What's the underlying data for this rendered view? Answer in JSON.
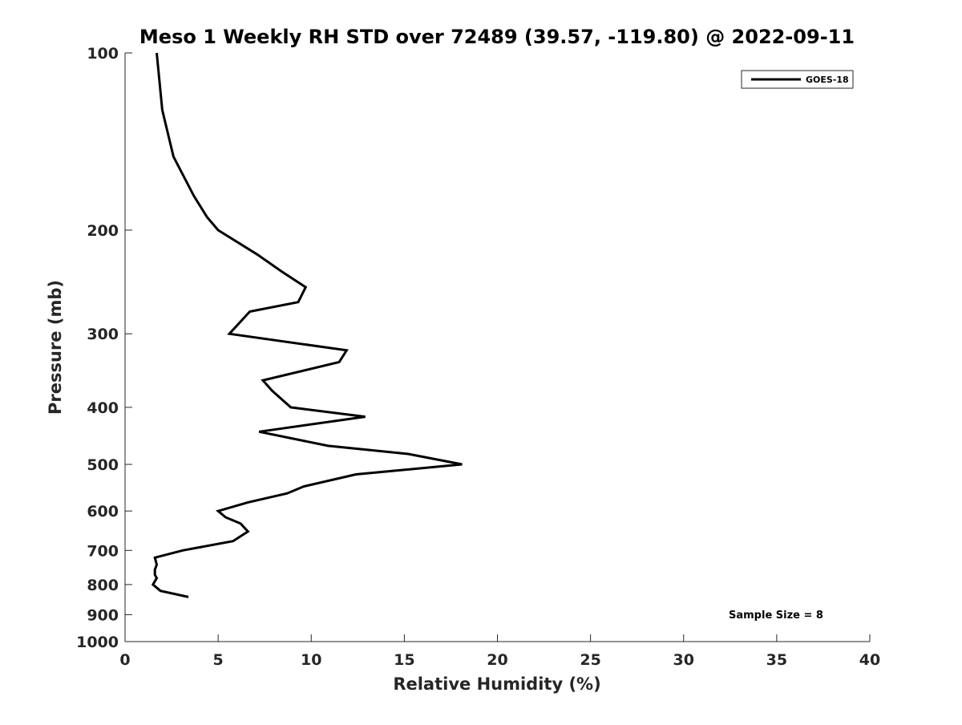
{
  "chart_data": {
    "type": "line",
    "title": "Meso 1 Weekly RH STD over 72489 (39.57, -119.80) @ 2022-09-11",
    "xlabel": "Relative Humidity (%)",
    "ylabel": "Pressure (mb)",
    "xlim": [
      0,
      40
    ],
    "ylim": [
      100,
      1000
    ],
    "y_scale": "log",
    "y_reversed": true,
    "x_ticks": [
      0,
      5,
      10,
      15,
      20,
      25,
      30,
      35,
      40
    ],
    "y_ticks": [
      100,
      200,
      300,
      400,
      500,
      600,
      700,
      800,
      900,
      1000
    ],
    "grid": false,
    "legend_position": "top-right",
    "annotation": "Sample Size = 8",
    "series": [
      {
        "name": "GOES-18",
        "color": "#000000",
        "points": [
          [
            1.7,
            100
          ],
          [
            2.0,
            125
          ],
          [
            2.6,
            150
          ],
          [
            3.7,
            175
          ],
          [
            4.4,
            190
          ],
          [
            5.0,
            200
          ],
          [
            7.1,
            220
          ],
          [
            8.4,
            235
          ],
          [
            9.7,
            250
          ],
          [
            9.3,
            265
          ],
          [
            6.7,
            275
          ],
          [
            5.6,
            300
          ],
          [
            11.9,
            320
          ],
          [
            11.5,
            335
          ],
          [
            7.4,
            360
          ],
          [
            7.9,
            375
          ],
          [
            8.9,
            400
          ],
          [
            12.9,
            415
          ],
          [
            7.2,
            440
          ],
          [
            10.9,
            465
          ],
          [
            15.2,
            480
          ],
          [
            18.1,
            500
          ],
          [
            12.4,
            520
          ],
          [
            9.6,
            545
          ],
          [
            8.7,
            560
          ],
          [
            6.6,
            580
          ],
          [
            5.0,
            600
          ],
          [
            5.4,
            615
          ],
          [
            6.2,
            630
          ],
          [
            6.6,
            650
          ],
          [
            5.8,
            675
          ],
          [
            3.1,
            700
          ],
          [
            1.6,
            720
          ],
          [
            1.7,
            740
          ],
          [
            1.6,
            755
          ],
          [
            1.6,
            770
          ],
          [
            1.7,
            780
          ],
          [
            1.5,
            800
          ],
          [
            1.9,
            820
          ],
          [
            3.4,
            840
          ]
        ]
      }
    ]
  }
}
